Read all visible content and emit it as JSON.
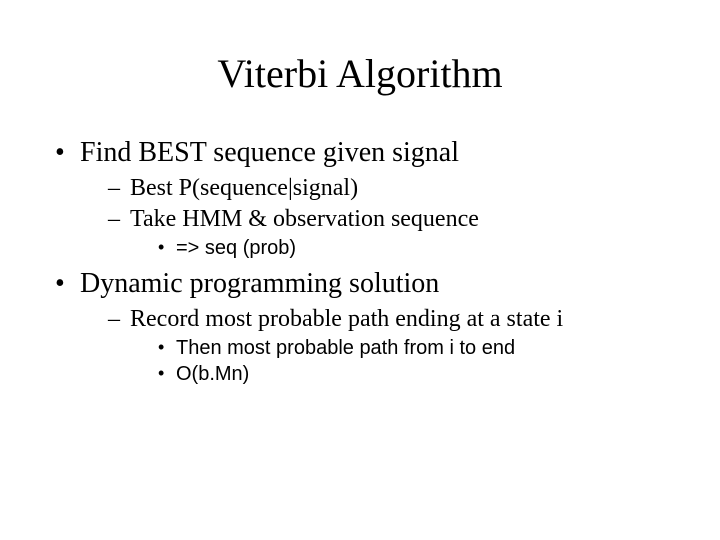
{
  "slide": {
    "title": "Viterbi Algorithm",
    "bullets": [
      {
        "text": "Find BEST sequence given signal",
        "children": [
          {
            "text": "Best P(sequence|signal)"
          },
          {
            "text": "Take HMM & observation sequence",
            "children": [
              {
                "text": "=> seq (prob)"
              }
            ]
          }
        ]
      },
      {
        "text": "Dynamic programming solution",
        "children": [
          {
            "text": "Record most probable path ending at a state i",
            "children": [
              {
                "text": "Then most probable path from i to end"
              },
              {
                "text": "O(b.Mn)"
              }
            ]
          }
        ]
      }
    ]
  },
  "style": {
    "background_color": "#ffffff",
    "text_color": "#000000",
    "title_fontsize": 40,
    "level1_fontsize": 28,
    "level2_fontsize": 24,
    "level3_fontsize": 20,
    "serif_font": "Times New Roman",
    "sans_font": "Arial"
  }
}
